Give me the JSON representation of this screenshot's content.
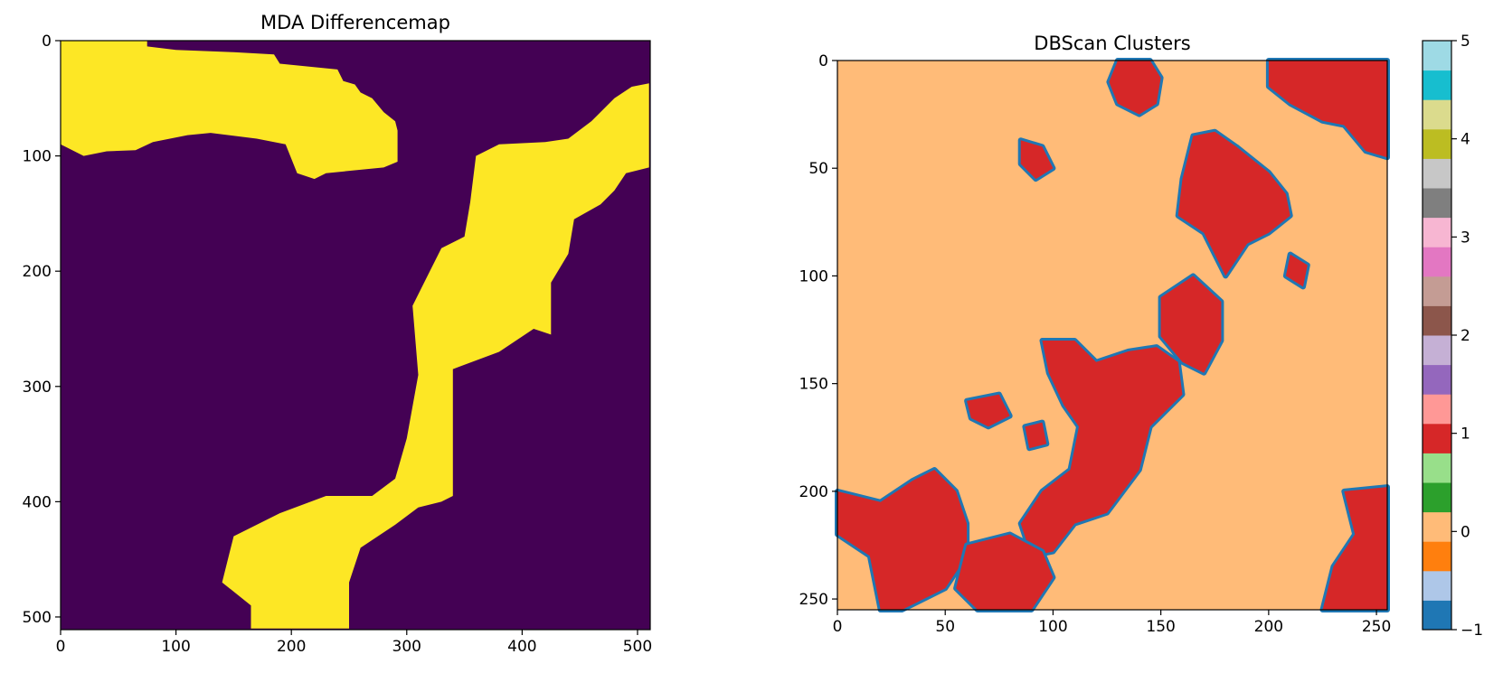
{
  "chart_data": [
    {
      "type": "heatmap",
      "title": "MDA Differencemap",
      "xlabel": "",
      "ylabel": "",
      "xlim": [
        0,
        511
      ],
      "ylim": [
        511,
        0
      ],
      "x_ticks": [
        "0",
        "100",
        "200",
        "300",
        "400",
        "500"
      ],
      "y_ticks": [
        "0",
        "100",
        "200",
        "300",
        "400",
        "500"
      ],
      "values": [
        0,
        1
      ],
      "colors": {
        "0": "#440154",
        "1": "#fde725"
      },
      "regions": [
        {
          "value": 1,
          "label": "upper band",
          "outline": [
            [
              0,
              0
            ],
            [
              75,
              0
            ],
            [
              75,
              5
            ],
            [
              100,
              8
            ],
            [
              150,
              10
            ],
            [
              185,
              12
            ],
            [
              190,
              20
            ],
            [
              240,
              25
            ],
            [
              245,
              35
            ],
            [
              255,
              38
            ],
            [
              260,
              45
            ],
            [
              270,
              50
            ],
            [
              280,
              62
            ],
            [
              290,
              70
            ],
            [
              292,
              78
            ],
            [
              292,
              105
            ],
            [
              280,
              110
            ],
            [
              230,
              115
            ],
            [
              220,
              120
            ],
            [
              205,
              115
            ],
            [
              195,
              90
            ],
            [
              170,
              85
            ],
            [
              130,
              80
            ],
            [
              110,
              82
            ],
            [
              80,
              88
            ],
            [
              65,
              95
            ],
            [
              40,
              96
            ],
            [
              20,
              100
            ],
            [
              0,
              90
            ]
          ]
        },
        {
          "value": 1,
          "label": "lower band",
          "outline": [
            [
              510,
              37
            ],
            [
              510,
              110
            ],
            [
              490,
              115
            ],
            [
              480,
              130
            ],
            [
              468,
              142
            ],
            [
              445,
              155
            ],
            [
              440,
              185
            ],
            [
              425,
              210
            ],
            [
              425,
              255
            ],
            [
              410,
              250
            ],
            [
              380,
              270
            ],
            [
              340,
              285
            ],
            [
              340,
              395
            ],
            [
              330,
              400
            ],
            [
              310,
              405
            ],
            [
              290,
              420
            ],
            [
              260,
              440
            ],
            [
              250,
              470
            ],
            [
              250,
              510
            ],
            [
              165,
              510
            ],
            [
              165,
              490
            ],
            [
              140,
              470
            ],
            [
              150,
              430
            ],
            [
              190,
              410
            ],
            [
              230,
              395
            ],
            [
              270,
              395
            ],
            [
              290,
              380
            ],
            [
              300,
              345
            ],
            [
              310,
              290
            ],
            [
              305,
              230
            ],
            [
              320,
              200
            ],
            [
              330,
              180
            ],
            [
              350,
              170
            ],
            [
              355,
              140
            ],
            [
              360,
              100
            ],
            [
              380,
              90
            ],
            [
              420,
              88
            ],
            [
              440,
              85
            ],
            [
              460,
              70
            ],
            [
              480,
              50
            ],
            [
              495,
              40
            ]
          ]
        }
      ],
      "grid": false,
      "legend": "none"
    },
    {
      "type": "heatmap",
      "title": "DBScan Clusters",
      "xlabel": "",
      "ylabel": "",
      "xlim": [
        0,
        255
      ],
      "ylim": [
        255,
        0
      ],
      "x_ticks": [
        "0",
        "50",
        "100",
        "150",
        "200",
        "250"
      ],
      "y_ticks": [
        "0",
        "50",
        "100",
        "150",
        "200",
        "250"
      ],
      "colormap": "tab20",
      "colorbar_range": [
        -1,
        5
      ],
      "colorbar_ticks": [
        "−1",
        "0",
        "1",
        "2",
        "3",
        "4",
        "5"
      ],
      "colorbar_colors": [
        "#1f77b4",
        "#aec7e8",
        "#ff7f0e",
        "#ffbb78",
        "#2ca02c",
        "#98df8a",
        "#d62728",
        "#ff9896",
        "#9467bd",
        "#c5b0d5",
        "#8c564b",
        "#c49c94",
        "#e377c2",
        "#f7b6d2",
        "#7f7f7f",
        "#c7c7c7",
        "#bcbd22",
        "#dbdb8d",
        "#17becf",
        "#9edae5"
      ],
      "class_colors": {
        "-1": "#1f77b4",
        "0": "#ffbb78",
        "1": "#d62728"
      },
      "background_class": 0,
      "clusters_class1": [
        {
          "outline": [
            [
              130,
              0
            ],
            [
              145,
              0
            ],
            [
              150,
              8
            ],
            [
              148,
              20
            ],
            [
              140,
              25
            ],
            [
              130,
              20
            ],
            [
              126,
              10
            ]
          ]
        },
        {
          "outline": [
            [
              200,
              0
            ],
            [
              255,
              0
            ],
            [
              255,
              45
            ],
            [
              245,
              42
            ],
            [
              235,
              30
            ],
            [
              225,
              28
            ],
            [
              210,
              20
            ],
            [
              200,
              12
            ]
          ]
        },
        {
          "outline": [
            [
              165,
              35
            ],
            [
              175,
              33
            ],
            [
              185,
              40
            ],
            [
              200,
              52
            ],
            [
              208,
              62
            ],
            [
              210,
              72
            ],
            [
              200,
              80
            ],
            [
              190,
              85
            ],
            [
              180,
              100
            ],
            [
              175,
              90
            ],
            [
              170,
              80
            ],
            [
              158,
              72
            ],
            [
              160,
              55
            ]
          ]
        },
        {
          "outline": [
            [
              85,
              37
            ],
            [
              95,
              40
            ],
            [
              100,
              50
            ],
            [
              92,
              55
            ],
            [
              85,
              48
            ]
          ]
        },
        {
          "outline": [
            [
              150,
              110
            ],
            [
              165,
              100
            ],
            [
              178,
              112
            ],
            [
              178,
              130
            ],
            [
              170,
              145
            ],
            [
              160,
              140
            ],
            [
              150,
              128
            ]
          ]
        },
        {
          "outline": [
            [
              95,
              130
            ],
            [
              110,
              130
            ],
            [
              120,
              140
            ],
            [
              135,
              135
            ],
            [
              148,
              133
            ],
            [
              158,
              140
            ],
            [
              160,
              155
            ],
            [
              145,
              170
            ],
            [
              140,
              190
            ],
            [
              125,
              210
            ],
            [
              110,
              215
            ],
            [
              100,
              228
            ],
            [
              90,
              230
            ],
            [
              85,
              215
            ],
            [
              95,
              200
            ],
            [
              108,
              190
            ],
            [
              112,
              170
            ],
            [
              105,
              160
            ],
            [
              98,
              145
            ]
          ]
        },
        {
          "outline": [
            [
              0,
              200
            ],
            [
              20,
              205
            ],
            [
              35,
              195
            ],
            [
              45,
              190
            ],
            [
              55,
              200
            ],
            [
              60,
              215
            ],
            [
              60,
              230
            ],
            [
              50,
              245
            ],
            [
              30,
              255
            ],
            [
              20,
              255
            ],
            [
              15,
              230
            ],
            [
              0,
              220
            ]
          ]
        },
        {
          "outline": [
            [
              60,
              225
            ],
            [
              80,
              220
            ],
            [
              95,
              228
            ],
            [
              100,
              240
            ],
            [
              90,
              255
            ],
            [
              65,
              255
            ],
            [
              55,
              245
            ]
          ]
        },
        {
          "outline": [
            [
              60,
              158
            ],
            [
              75,
              155
            ],
            [
              80,
              165
            ],
            [
              70,
              170
            ],
            [
              62,
              166
            ]
          ]
        },
        {
          "outline": [
            [
              87,
              170
            ],
            [
              95,
              168
            ],
            [
              97,
              178
            ],
            [
              89,
              180
            ]
          ]
        },
        {
          "outline": [
            [
              235,
              200
            ],
            [
              255,
              198
            ],
            [
              255,
              255
            ],
            [
              225,
              255
            ],
            [
              230,
              235
            ],
            [
              240,
              220
            ]
          ]
        },
        {
          "outline": [
            [
              210,
              90
            ],
            [
              218,
              95
            ],
            [
              216,
              105
            ],
            [
              208,
              100
            ]
          ]
        }
      ],
      "grid": false,
      "legend": "none"
    }
  ]
}
